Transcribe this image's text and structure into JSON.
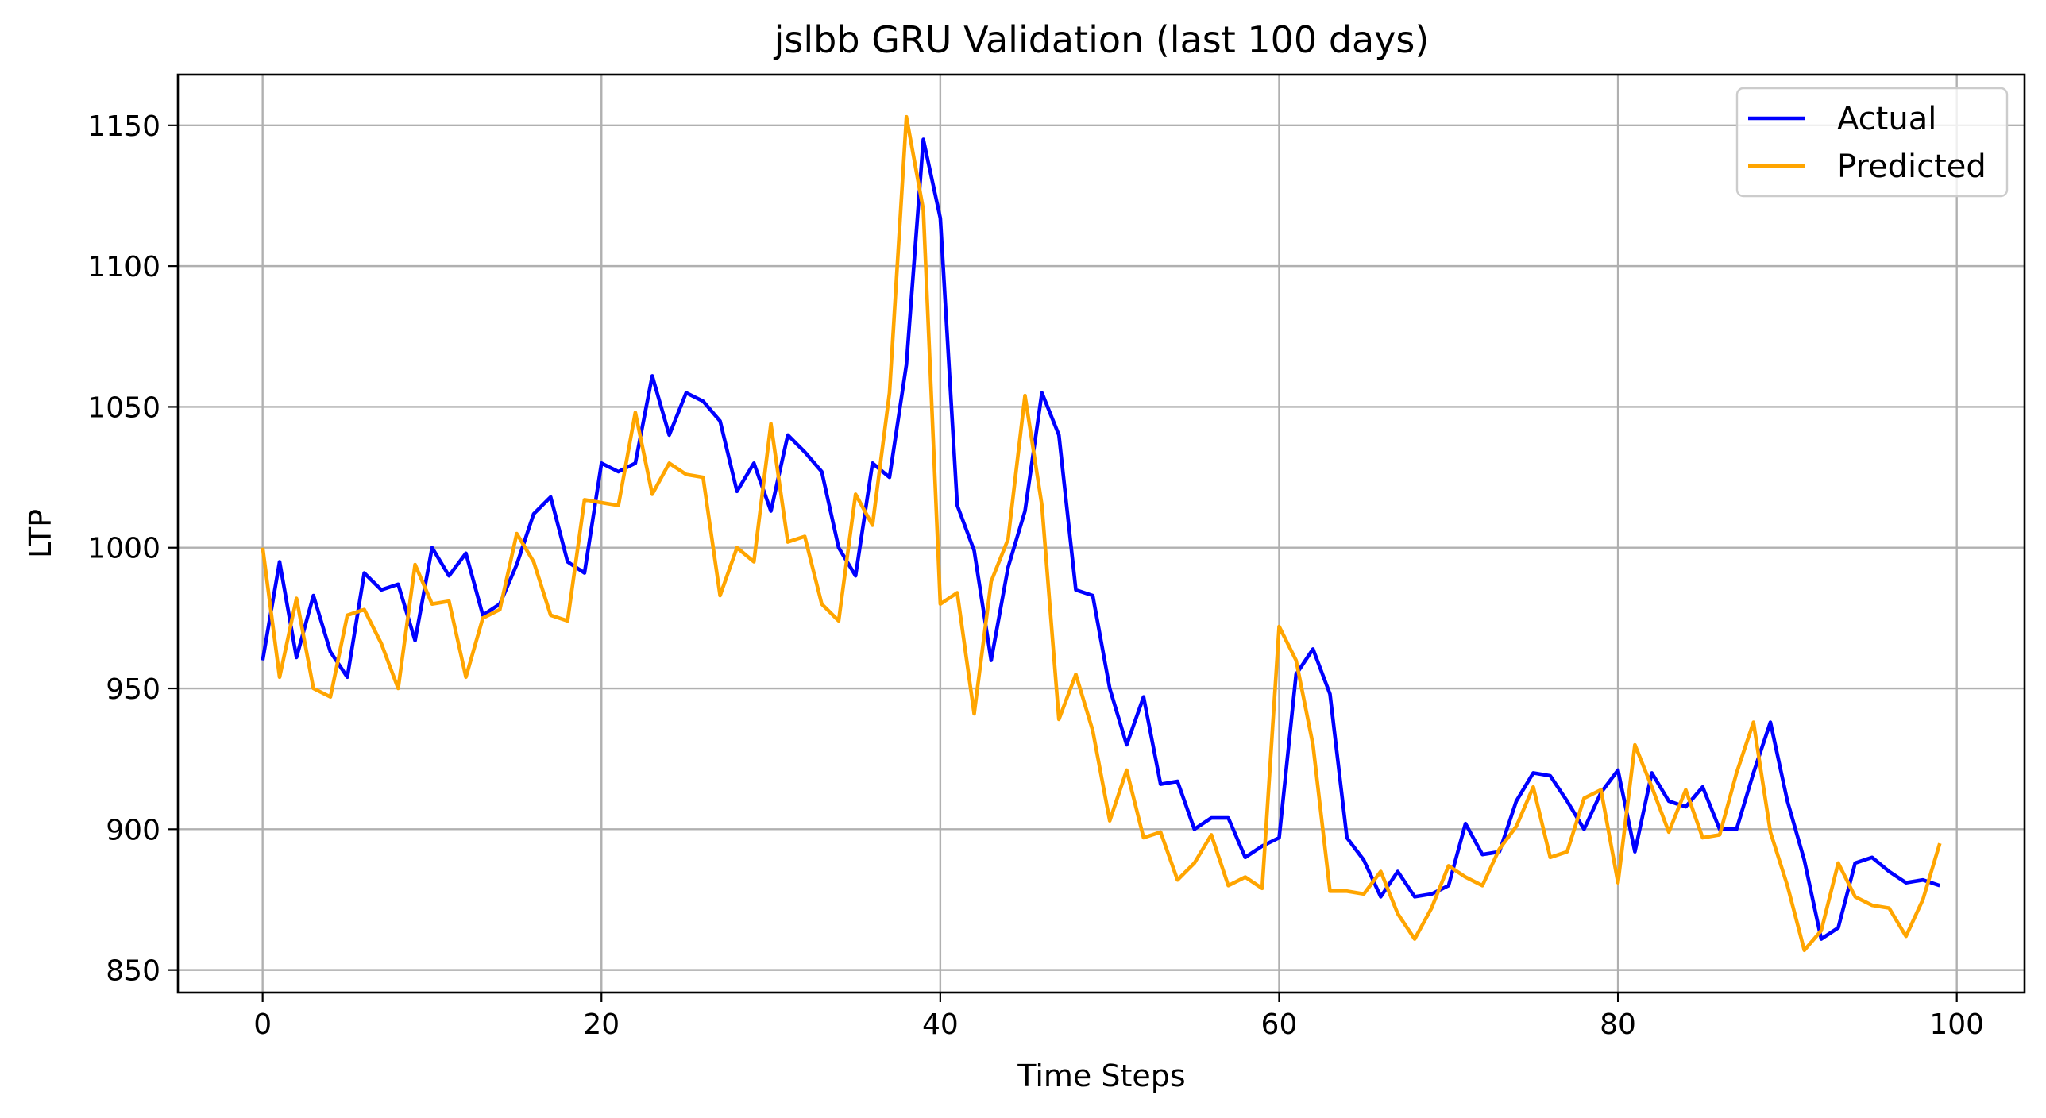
{
  "chart_data": {
    "type": "line",
    "title": "jslbb GRU Validation (last 100 days)",
    "xlabel": "Time Steps",
    "ylabel": "LTP",
    "xlim": [
      -5,
      104
    ],
    "ylim": [
      842,
      1168
    ],
    "xticks": [
      0,
      20,
      40,
      60,
      80,
      100
    ],
    "yticks": [
      850,
      900,
      950,
      1000,
      1050,
      1100,
      1150
    ],
    "grid": true,
    "legend_position": "upper right",
    "series": [
      {
        "name": "Actual",
        "color": "#0000ff",
        "values": [
          960,
          995,
          961,
          983,
          963,
          954,
          991,
          985,
          987,
          967,
          1000,
          990,
          998,
          976,
          980,
          994,
          1012,
          1018,
          995,
          991,
          1030,
          1027,
          1030,
          1061,
          1040,
          1055,
          1052,
          1045,
          1020,
          1030,
          1013,
          1040,
          1034,
          1027,
          1000,
          990,
          1030,
          1025,
          1065,
          1145,
          1117,
          1015,
          999,
          960,
          993,
          1013,
          1055,
          1040,
          985,
          983,
          950,
          930,
          947,
          916,
          917,
          900,
          904,
          904,
          890,
          894,
          897,
          955,
          964,
          948,
          897,
          889,
          876,
          885,
          876,
          877,
          880,
          902,
          891,
          892,
          910,
          920,
          919,
          910,
          900,
          913,
          921,
          892,
          920,
          910,
          908,
          915,
          900,
          900,
          920,
          938,
          910,
          889,
          861,
          865,
          888,
          890,
          885,
          881,
          882,
          880
        ]
      },
      {
        "name": "Predicted",
        "color": "#ffa500",
        "values": [
          1000,
          954,
          982,
          950,
          947,
          976,
          978,
          966,
          950,
          994,
          980,
          981,
          954,
          975,
          978,
          1005,
          995,
          976,
          974,
          1017,
          1016,
          1015,
          1048,
          1019,
          1030,
          1026,
          1025,
          983,
          1000,
          995,
          1044,
          1002,
          1004,
          980,
          974,
          1019,
          1008,
          1055,
          1153,
          1120,
          980,
          984,
          941,
          988,
          1003,
          1054,
          1015,
          939,
          955,
          935,
          903,
          921,
          897,
          899,
          882,
          888,
          898,
          880,
          883,
          879,
          972,
          960,
          930,
          878,
          878,
          877,
          885,
          870,
          861,
          872,
          887,
          883,
          880,
          893,
          901,
          915,
          890,
          892,
          911,
          914,
          881,
          930,
          915,
          899,
          914,
          897,
          898,
          920,
          938,
          899,
          880,
          857,
          864,
          888,
          876,
          873,
          872,
          862,
          875,
          895
        ]
      }
    ]
  }
}
